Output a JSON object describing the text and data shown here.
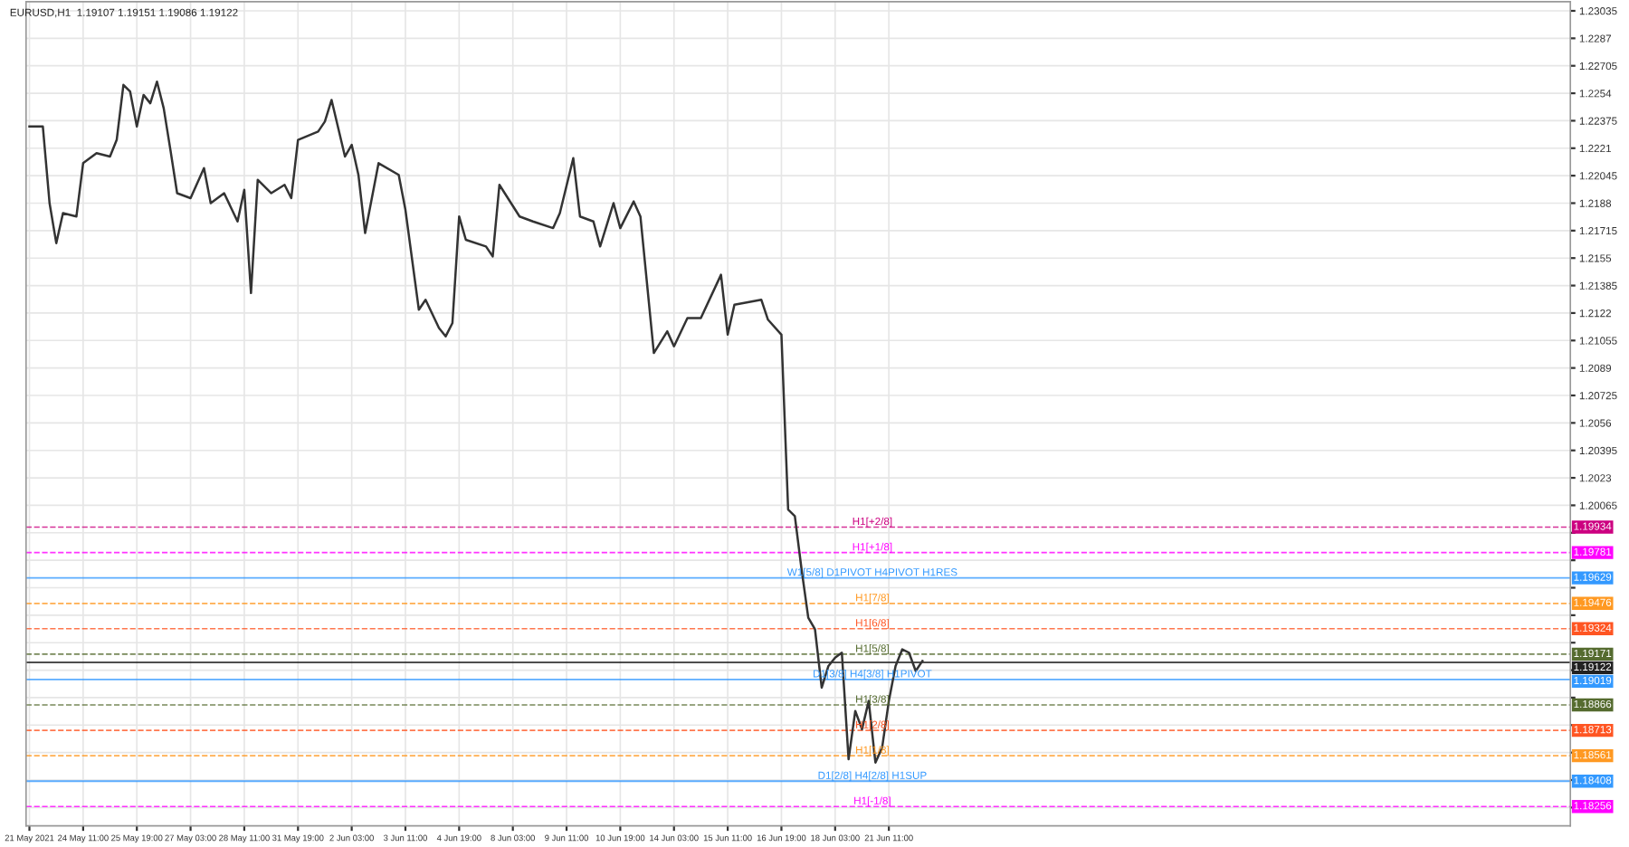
{
  "chart_data": {
    "type": "line",
    "title": "EURUSD,H1  1.19107 1.19151 1.19086 1.19122",
    "categories": [
      "21 May 2021",
      null,
      null,
      null,
      null,
      null,
      null,
      null,
      "24 May 11:00",
      null,
      null,
      null,
      null,
      null,
      null,
      null,
      "25 May 19:00",
      null,
      null,
      null,
      null,
      null,
      null,
      null,
      "27 May 03:00",
      null,
      null,
      null,
      null,
      null,
      null,
      null,
      "28 May 11:00",
      null,
      null,
      null,
      null,
      null,
      null,
      null,
      "31 May 19:00",
      null,
      null,
      null,
      null,
      null,
      null,
      null,
      "2 Jun 03:00",
      null,
      null,
      null,
      null,
      null,
      null,
      null,
      "3 Jun 11:00",
      null,
      null,
      null,
      null,
      null,
      null,
      null,
      "4 Jun 19:00",
      null,
      null,
      null,
      null,
      null,
      null,
      null,
      "8 Jun 03:00",
      null,
      null,
      null,
      null,
      null,
      null,
      null,
      "9 Jun 11:00",
      null,
      null,
      null,
      null,
      null,
      null,
      null,
      "10 Jun 19:00",
      null,
      null,
      null,
      null,
      null,
      null,
      null,
      "14 Jun 03:00",
      null,
      null,
      null,
      null,
      null,
      null,
      null,
      "15 Jun 11:00",
      null,
      null,
      null,
      null,
      null,
      null,
      null,
      "16 Jun 19:00",
      null,
      null,
      null,
      null,
      null,
      null,
      null,
      "18 Jun 03:00",
      null,
      null,
      null,
      null,
      null,
      null,
      null,
      "21 Jun 11:00",
      null,
      null,
      null,
      null,
      null,
      null,
      null,
      null,
      null,
      null,
      null,
      null,
      null,
      null,
      null,
      null,
      null,
      null,
      null,
      null,
      null,
      null,
      null,
      null,
      null,
      null,
      null,
      null,
      null,
      null,
      null,
      null,
      null,
      null,
      null,
      null,
      null,
      null,
      null,
      null,
      null,
      null,
      null,
      null,
      null,
      null,
      null,
      null,
      null,
      null,
      null,
      null,
      null,
      null,
      null,
      null,
      null,
      null,
      null,
      null,
      null,
      null,
      null,
      null,
      null,
      null,
      null,
      null,
      null,
      null,
      null,
      null,
      null,
      null,
      null,
      null,
      null,
      null,
      null,
      null,
      null,
      null,
      null,
      null,
      null,
      null,
      null,
      null,
      null,
      null,
      null,
      null,
      null,
      null,
      null,
      null,
      null,
      null,
      null,
      null,
      null
    ],
    "series": [
      {
        "color": "#333333",
        "values": [
          1.2234,
          null,
          1.2234,
          1.2188,
          1.2164,
          1.2182,
          null,
          1.218,
          1.2212,
          null,
          1.2218,
          null,
          1.2216,
          1.2226,
          1.2259,
          1.2255,
          1.2234,
          1.2253,
          1.2248,
          1.2261,
          1.2245,
          1.222,
          1.2194,
          null,
          1.2191,
          null,
          1.2209,
          1.2188,
          null,
          1.2194,
          null,
          1.2177,
          1.2196,
          1.2134,
          1.2202,
          null,
          1.2194,
          null,
          1.2199,
          1.2191,
          1.2226,
          null,
          null,
          1.2231,
          1.2237,
          1.225,
          null,
          1.2216,
          1.2223,
          1.2205,
          1.217,
          null,
          1.2212,
          null,
          null,
          1.2205,
          1.2184,
          null,
          1.2124,
          1.213,
          null,
          1.2113,
          1.2108,
          1.2116,
          1.218,
          1.2166,
          null,
          null,
          1.2162,
          1.2156,
          1.2199,
          null,
          null,
          1.218,
          null,
          1.2177,
          null,
          null,
          1.2173,
          1.2182,
          null,
          1.2215,
          1.218,
          null,
          1.2177,
          1.2162,
          null,
          1.2188,
          1.2173,
          null,
          1.2189,
          1.218,
          null,
          1.2098,
          null,
          1.2111,
          1.2102,
          null,
          1.2119,
          null,
          1.2119,
          null,
          null,
          1.2145,
          1.2109,
          1.2127,
          null,
          null,
          null,
          1.213,
          1.2118,
          null,
          1.2109,
          1.2004,
          1.2,
          1.1968,
          1.1939,
          1.1932,
          1.1897,
          1.191,
          1.1915,
          1.1918,
          1.1854,
          1.1883,
          1.1872,
          1.1889,
          1.1852,
          1.1861,
          1.1889,
          1.191,
          1.192,
          1.1918,
          1.1907,
          1.1913,
          null,
          null,
          null,
          null,
          null,
          null,
          null,
          null,
          null,
          null,
          null,
          null,
          null,
          null,
          null,
          null,
          null,
          null,
          null,
          null,
          null,
          null,
          null,
          null,
          null,
          null,
          null,
          null,
          null,
          null,
          null,
          null,
          null,
          null,
          null,
          null,
          null,
          null,
          null,
          null,
          null,
          null,
          null,
          null,
          null,
          null,
          null,
          null,
          null,
          null,
          null,
          null,
          null,
          null,
          null,
          null,
          null,
          null,
          null,
          null,
          null,
          null,
          null,
          null,
          null,
          null,
          null,
          null,
          null,
          null,
          null,
          null,
          null,
          null,
          null,
          null,
          null,
          null,
          null,
          null,
          null,
          null,
          null,
          null,
          null,
          null,
          null,
          null,
          null,
          null,
          null,
          null,
          null,
          null,
          null,
          null
        ]
      }
    ],
    "ylim": [
      1.1814,
      1.2309
    ],
    "yticks": [
      1.23035,
      1.2287,
      1.22705,
      1.2254,
      1.22375,
      1.2221,
      1.22045,
      1.2188,
      1.21715,
      1.2155,
      1.21385,
      1.2122,
      1.21055,
      1.2089,
      1.20725,
      1.2056,
      1.20395,
      1.2023,
      1.20065,
      {
        "value": 1.199,
        "label": null
      },
      {
        "value": 1.19735,
        "label": null
      },
      {
        "value": 1.1957,
        "label": null
      },
      {
        "value": 1.19405,
        "label": null
      },
      {
        "value": 1.1924,
        "label": null
      },
      {
        "value": 1.19075,
        "label": null
      },
      {
        "value": 1.1891,
        "label": null
      },
      {
        "value": 1.18745,
        "label": null
      },
      {
        "value": 1.1858,
        "label": null
      },
      {
        "value": 1.18415,
        "label": null
      },
      {
        "value": 1.1825,
        "label": null
      }
    ],
    "grid": true,
    "ref_lines": [
      {
        "axis": "y",
        "value": 1.19934,
        "label": "1.19934",
        "color": "#cc0080",
        "line_style": "dashed"
      },
      {
        "axis": "y",
        "value": 1.19781,
        "label": "1.19781",
        "color": "#ff00ff",
        "line_style": "dashed"
      },
      {
        "axis": "y",
        "value": 1.19629,
        "label": "1.19629",
        "color": "#3399ff",
        "line_style": "solid"
      },
      {
        "axis": "y",
        "value": 1.19476,
        "label": "1.19476",
        "color": "#ff9922",
        "line_style": "dashed"
      },
      {
        "axis": "y",
        "value": 1.19324,
        "label": "1.19324",
        "color": "#ff5522",
        "line_style": "dashed"
      },
      {
        "axis": "y",
        "value": 1.19171,
        "label": "1.19171",
        "color": "#556b2f",
        "line_style": "dashed"
      },
      {
        "axis": "y",
        "value": 1.19122,
        "label": "1.19122",
        "color": "#222222",
        "line_style": "solid"
      },
      {
        "axis": "y",
        "value": 1.19019,
        "label": "1.19019",
        "color": "#3399ff",
        "line_style": "solid"
      },
      {
        "axis": "y",
        "value": 1.18866,
        "label": "1.18866",
        "color": "#556b2f",
        "line_style": "dashed"
      },
      {
        "axis": "y",
        "value": 1.18713,
        "label": "1.18713",
        "color": "#ff5522",
        "line_style": "dashed"
      },
      {
        "axis": "y",
        "value": 1.18561,
        "label": "1.18561",
        "color": "#ff9922",
        "line_style": "dashed"
      },
      {
        "axis": "y",
        "value": 1.18408,
        "label": "1.18408",
        "color": "#3399ff",
        "line_style": "solid"
      },
      {
        "axis": "y",
        "value": 1.18256,
        "label": "1.18256",
        "color": "#ff00ff",
        "line_style": "dashed"
      }
    ],
    "annotations": [
      {
        "text": "H1[+2/8]",
        "y": 1.19934
      },
      {
        "text": "H1[+1/8]",
        "y": 1.19781
      },
      {
        "text": "W1[5/8] D1PIVOT H4PIVOT H1RES",
        "y": 1.19629
      },
      {
        "text": "H1[7/8]",
        "y": 1.19476
      },
      {
        "text": "H1[6/8]",
        "y": 1.19324
      },
      {
        "text": "H1[5/8]",
        "y": 1.19171
      },
      {
        "text": "D1[3/8] H4[3/8] H1PIVOT",
        "y": 1.19019
      },
      {
        "text": "H1[3/8]",
        "y": 1.18866
      },
      {
        "text": "H1[2/8]",
        "y": 1.18713
      },
      {
        "text": "H1[1/8]",
        "y": 1.18561
      },
      {
        "text": "D1[2/8] H4[2/8] H1SUP",
        "y": 1.18408
      },
      {
        "text": "H1[-1/8]",
        "y": 1.18256
      }
    ]
  }
}
